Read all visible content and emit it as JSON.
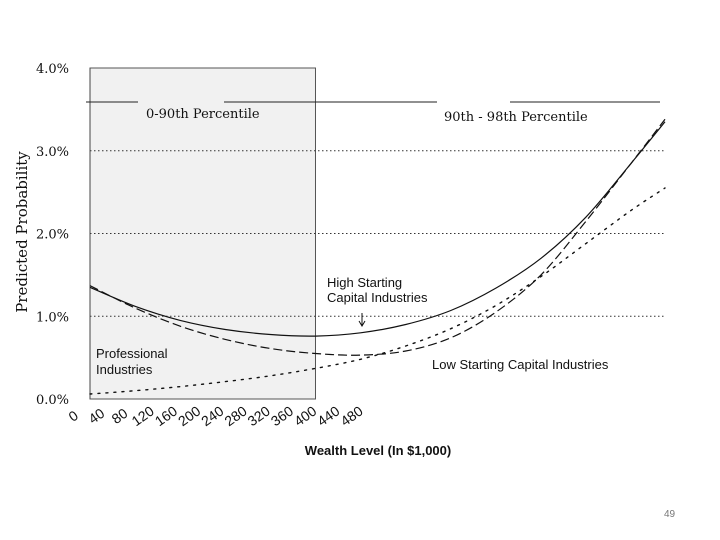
{
  "slide": {
    "page_number": "49"
  },
  "chart_data": {
    "type": "line",
    "ylabel": "Predicted Probability",
    "xlabel": "Wealth Level (In $1,000)",
    "x_ticks": [
      "0",
      "40",
      "80",
      "120",
      "160",
      "200",
      "240",
      "280",
      "320",
      "360",
      "400",
      "440",
      "480"
    ],
    "y_ticks": [
      "0.0%",
      "1.0%",
      "2.0%",
      "3.0%",
      "4.0%"
    ],
    "xlim": [
      0,
      510
    ],
    "ylim": [
      0,
      4
    ],
    "grid": "dotted horizontal lines at 1.0%, 2.0%, 3.0%",
    "shaded_region": {
      "x": [
        0,
        200
      ],
      "label": "0-90th Percentile"
    },
    "region_labels": [
      "0-90th Percentile",
      "90th - 98th Percentile"
    ],
    "annotations": [
      "High Starting Capital Industries",
      "Professional Industries",
      "Low Starting Capital Industries"
    ],
    "series": [
      {
        "name": "High Starting Capital Industries",
        "style": "solid",
        "x": [
          0,
          40,
          80,
          120,
          160,
          200,
          240,
          280,
          320,
          360,
          400,
          440,
          480,
          510
        ],
        "y": [
          1.35,
          1.12,
          0.95,
          0.84,
          0.78,
          0.76,
          0.8,
          0.9,
          1.07,
          1.34,
          1.7,
          2.2,
          2.85,
          3.35
        ]
      },
      {
        "name": "Professional Industries",
        "style": "dashed",
        "x": [
          0,
          40,
          80,
          120,
          160,
          200,
          240,
          280,
          320,
          360,
          400,
          440,
          480,
          510
        ],
        "y": [
          1.37,
          1.1,
          0.88,
          0.72,
          0.61,
          0.55,
          0.53,
          0.58,
          0.74,
          1.05,
          1.5,
          2.15,
          2.85,
          3.38
        ]
      },
      {
        "name": "Low Starting Capital Industries",
        "style": "dotted",
        "x": [
          0,
          40,
          80,
          120,
          160,
          200,
          240,
          280,
          320,
          360,
          400,
          440,
          480,
          510
        ],
        "y": [
          0.06,
          0.1,
          0.15,
          0.21,
          0.28,
          0.37,
          0.48,
          0.64,
          0.85,
          1.13,
          1.48,
          1.88,
          2.28,
          2.55
        ]
      }
    ]
  }
}
